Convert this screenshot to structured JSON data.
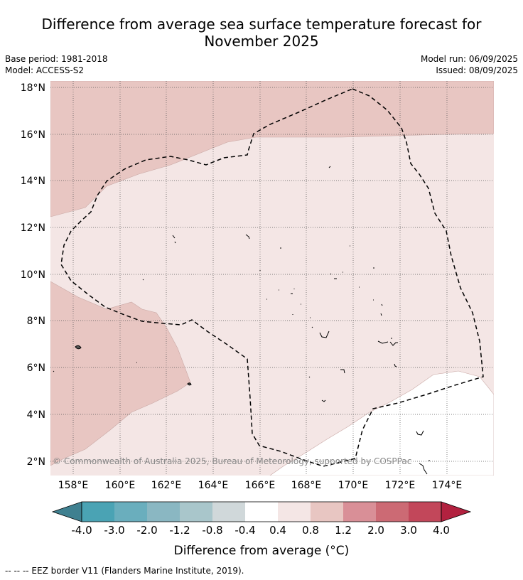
{
  "title_line1": "Difference from average sea surface temperature forecast for",
  "title_line2": "November 2025",
  "meta": {
    "base_period": "Base period: 1981-2018",
    "model": "Model: ACCESS-S2",
    "model_run": "Model run: 06/09/2025",
    "issued": "Issued: 08/09/2025"
  },
  "map": {
    "lon_ticks": [
      "158°E",
      "160°E",
      "162°E",
      "164°E",
      "166°E",
      "168°E",
      "170°E",
      "172°E",
      "174°E"
    ],
    "lat_ticks": [
      "18°N",
      "16°N",
      "14°N",
      "12°N",
      "10°N",
      "8°N",
      "6°N",
      "4°N",
      "2°N"
    ],
    "credit": "© Commonwealth of Australia 2025, Bureau of Meteorology, supported by COSPPac"
  },
  "colorbar": {
    "labels": [
      "-4.0",
      "-3.0",
      "-2.0",
      "-1.2",
      "-0.8",
      "-0.4",
      "0.4",
      "0.8",
      "1.2",
      "2.0",
      "3.0",
      "4.0"
    ],
    "colors": [
      "#3f8090",
      "#4aa3b4",
      "#6aaebd",
      "#8ab7c2",
      "#a9c6cb",
      "#d0d8da",
      "#ffffff",
      "#f4e6e5",
      "#e8c6c2",
      "#d98f97",
      "#cc6a74",
      "#c2475a",
      "#b2213f"
    ],
    "title": "Difference from average (°C)"
  },
  "footnote": "--  --  -- EEZ border V11 (Flanders Marine Institute, 2019)."
}
